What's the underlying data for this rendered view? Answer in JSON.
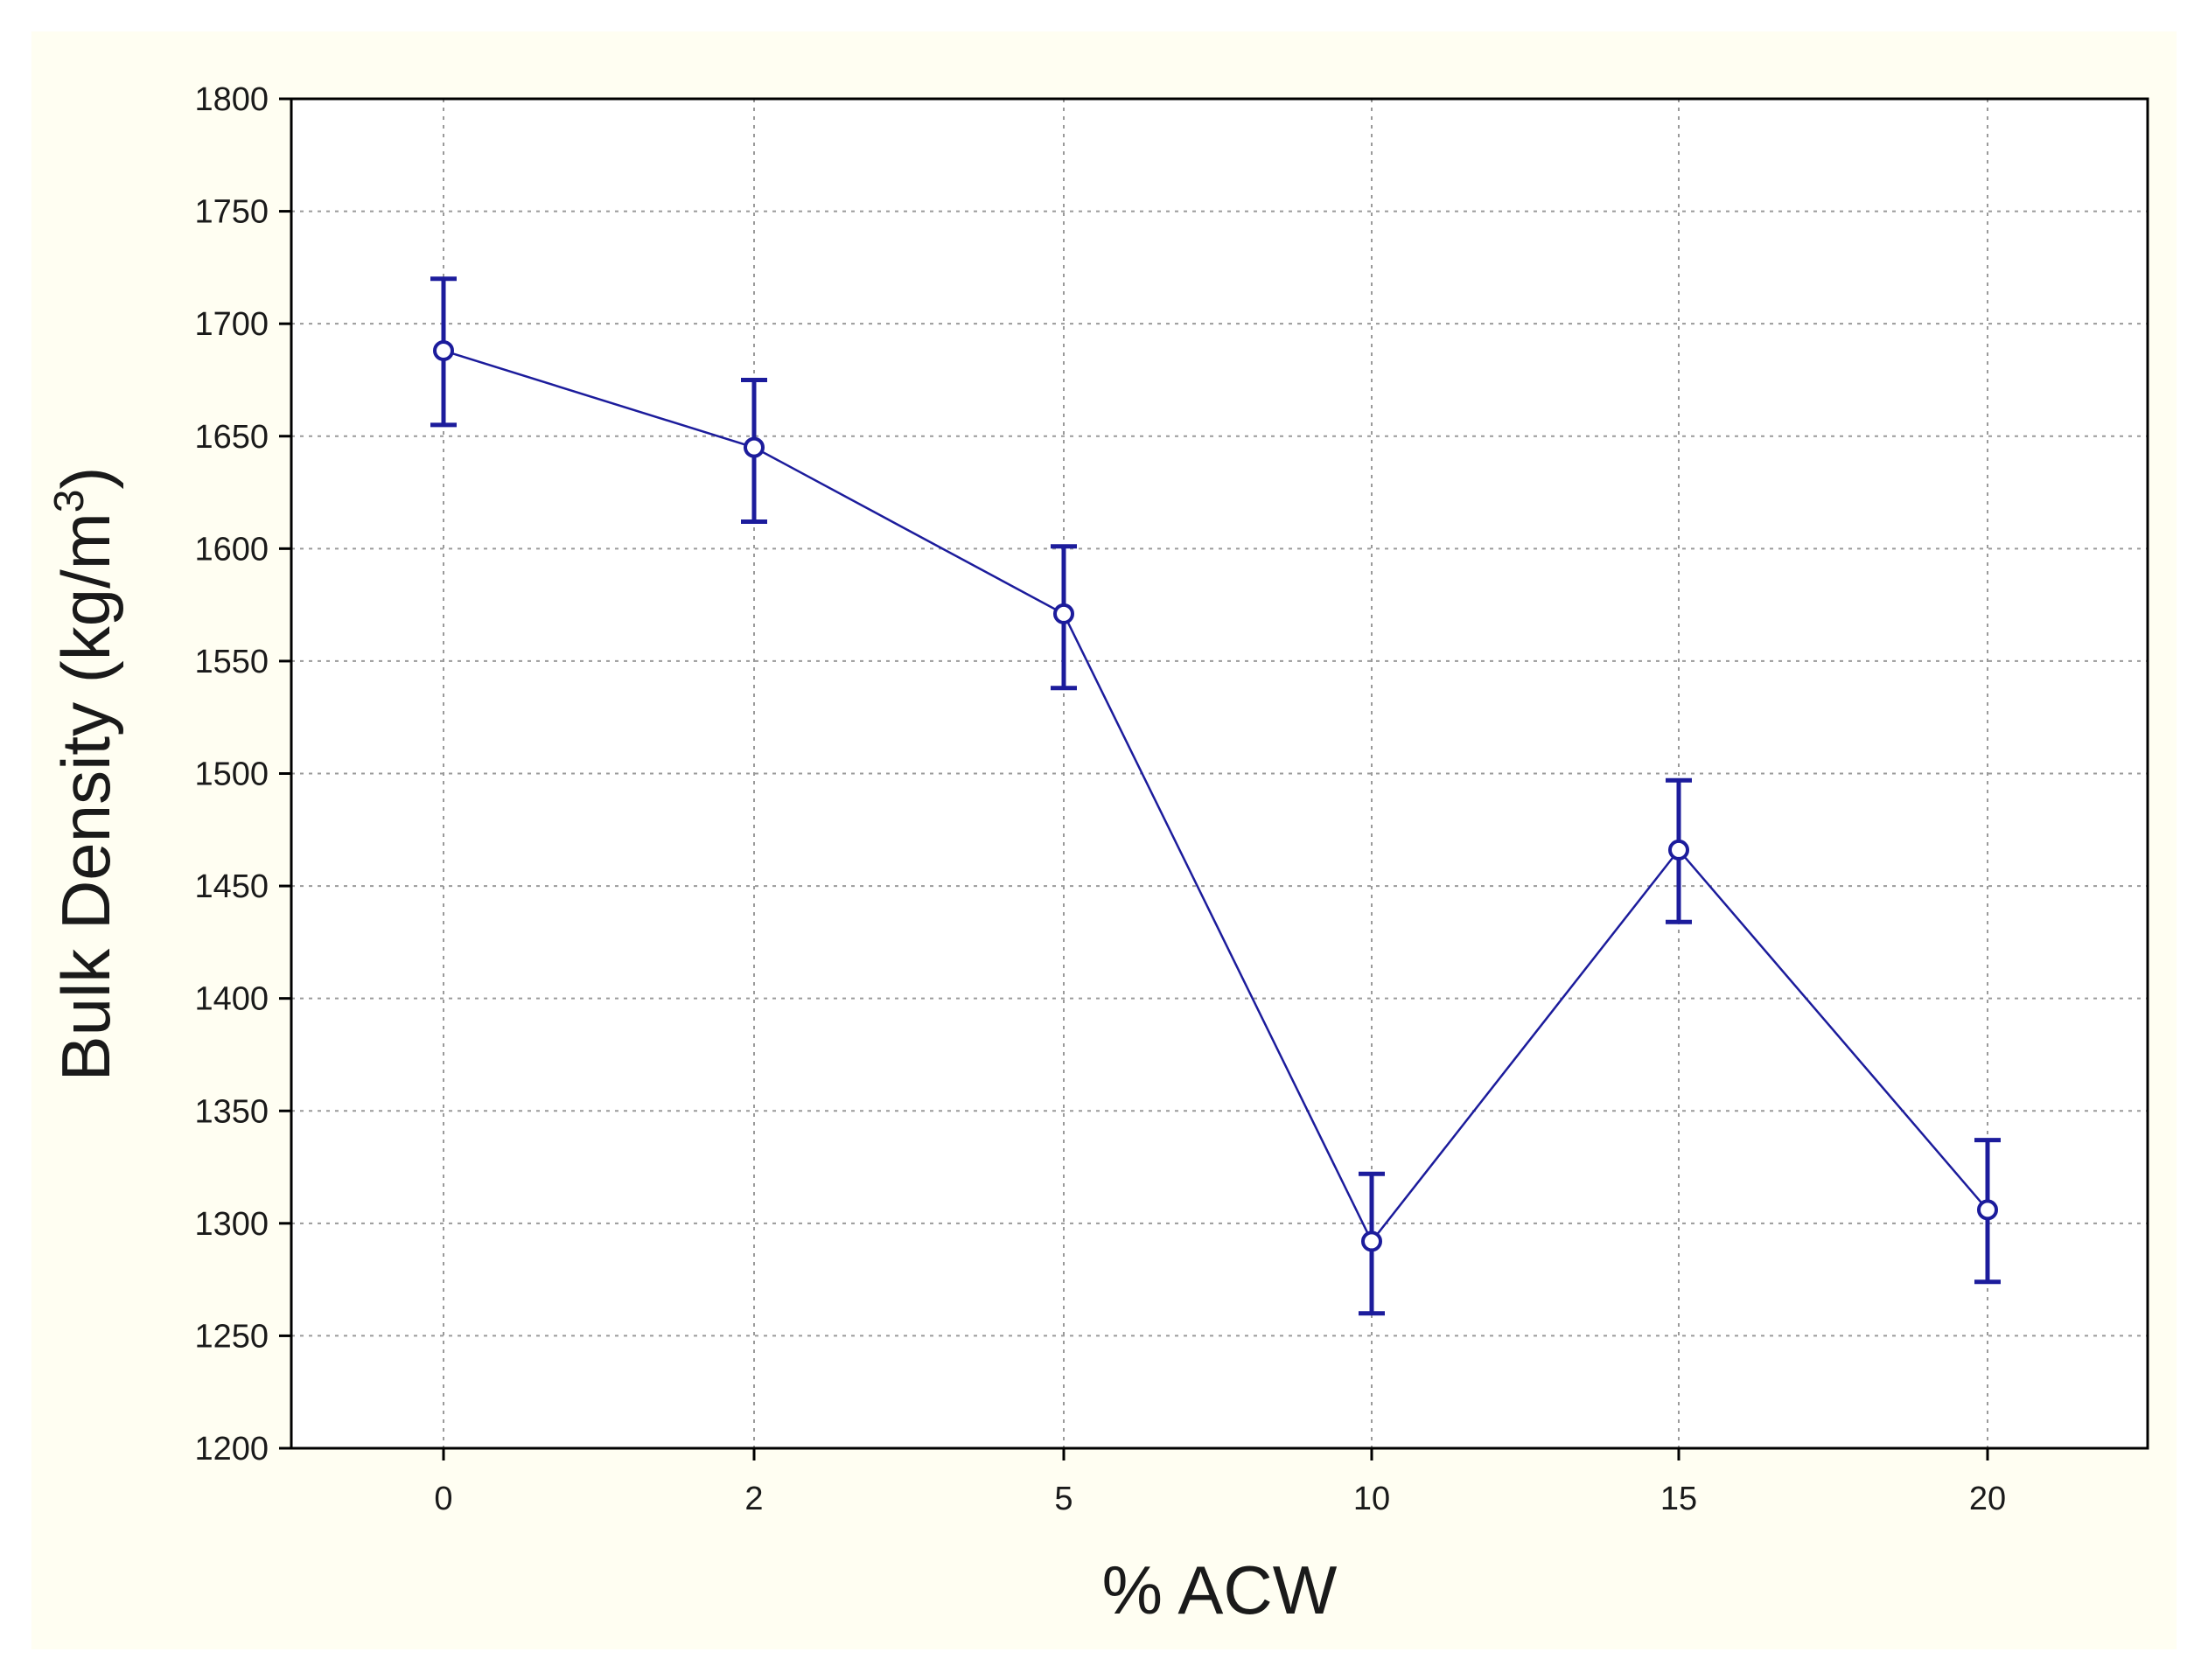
{
  "colors": {
    "panel_background": "#fffef2",
    "plot_background": "#ffffff",
    "series_color": "#1c1c9c",
    "grid_color": "#9a9a9a",
    "axis_color": "#000000"
  },
  "chart_data": {
    "type": "line",
    "title": "",
    "xlabel": "% ACW",
    "ylabel_main": "Bulk Density (kg/m",
    "ylabel_sup": "3",
    "ylabel_close": ")",
    "categories": [
      "0",
      "2",
      "5",
      "10",
      "15",
      "20"
    ],
    "y_ticks": [
      1200,
      1250,
      1300,
      1350,
      1400,
      1450,
      1500,
      1550,
      1600,
      1650,
      1700,
      1750,
      1800
    ],
    "ylim": [
      1200,
      1800
    ],
    "grid": true,
    "legend": "none",
    "series": [
      {
        "values": [
          1688,
          1645,
          1571,
          1292,
          1466,
          1306
        ],
        "error_low": [
          1655,
          1612,
          1538,
          1260,
          1434,
          1274
        ],
        "error_high": [
          1720,
          1675,
          1601,
          1322,
          1497,
          1337
        ]
      }
    ]
  }
}
